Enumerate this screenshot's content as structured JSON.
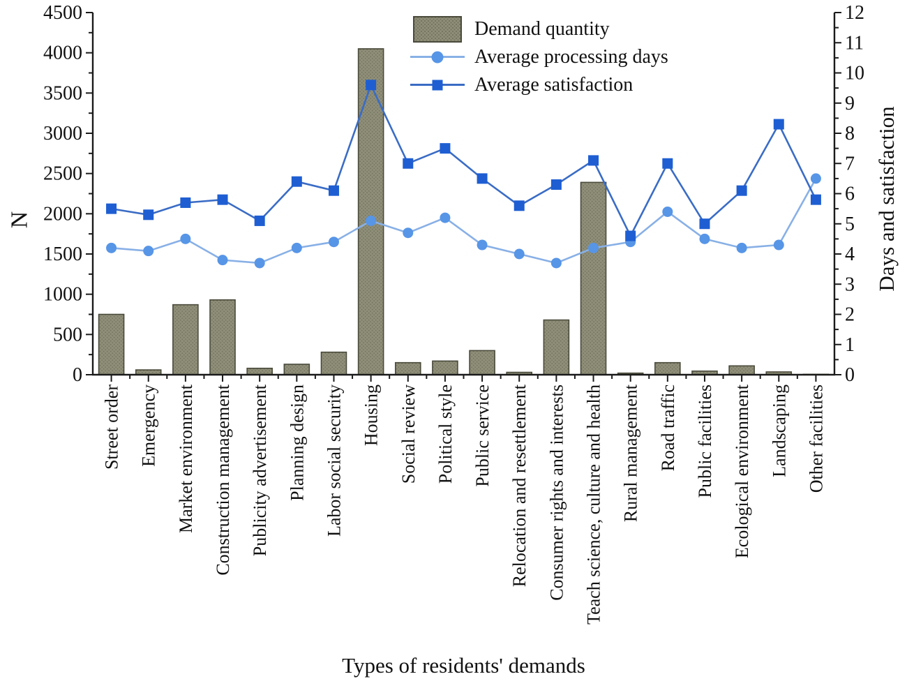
{
  "figure": {
    "title_x": "Types of residents' demands",
    "ylabel_left": "N",
    "ylabel_right": "Days and satisfaction"
  },
  "legend": {
    "bar_label": "Demand quantity",
    "days_label": "Average processing days",
    "satisfaction_label": "Average satisfaction"
  },
  "colors": {
    "bar_fill": "#8F8F79",
    "bar_dot": "#75755f",
    "bar_stroke": "#4A4A3C",
    "days_line": "#88B0E6",
    "days_marker": "#5795E7",
    "satisfaction_line": "#3A6CC5",
    "satisfaction_marker": "#1E5ED2",
    "axis": "#1a1a1a"
  },
  "chart_data": {
    "type": "bar+line combo",
    "categories": [
      "Street order",
      "Emergency",
      "Market environment",
      "Construction management",
      "Publicity advertisement",
      "Planning design",
      "Labor social security",
      "Housing",
      "Social review",
      "Political style",
      "Public service",
      "Relocation and resettlement",
      "Consumer rights and interests",
      "Teach science, culture and health",
      "Rural management",
      "Road traffic",
      "Public facilities",
      "Ecological environment",
      "Landscaping",
      "Other facilities"
    ],
    "series": [
      {
        "name": "Demand quantity",
        "type": "bar",
        "axis": "left",
        "values": [
          750,
          60,
          870,
          930,
          80,
          130,
          280,
          4050,
          150,
          170,
          300,
          30,
          680,
          2390,
          20,
          150,
          45,
          110,
          35,
          5
        ]
      },
      {
        "name": "Average processing days",
        "type": "line",
        "marker": "circle",
        "axis": "right",
        "values": [
          4.2,
          4.1,
          4.5,
          3.8,
          3.7,
          4.2,
          4.4,
          5.1,
          4.7,
          5.2,
          4.3,
          4.0,
          3.7,
          4.2,
          4.4,
          5.4,
          4.5,
          4.2,
          4.3,
          6.5
        ]
      },
      {
        "name": "Average satisfaction",
        "type": "line",
        "marker": "square",
        "axis": "right",
        "values": [
          5.5,
          5.3,
          5.7,
          5.8,
          5.1,
          6.4,
          6.1,
          9.6,
          7.0,
          7.5,
          6.5,
          5.6,
          6.3,
          7.1,
          4.6,
          7.0,
          5.0,
          6.1,
          8.3,
          5.8
        ]
      }
    ],
    "left_axis": {
      "label": "N",
      "min": 0,
      "max": 4500,
      "major": 500,
      "minor": 250
    },
    "right_axis": {
      "label": "Days and satisfaction",
      "min": 0,
      "max": 12,
      "major": 1,
      "minor": 0.5
    },
    "xlabel": "Types of residents' demands",
    "grid": false,
    "legend_position": "top-center",
    "x_tick_label_rotation": 90
  }
}
